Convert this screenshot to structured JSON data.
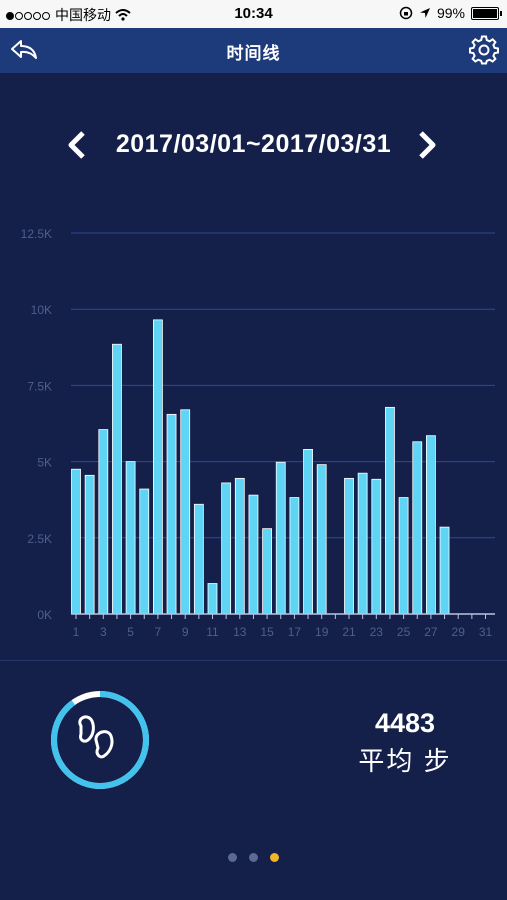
{
  "status_bar": {
    "carrier": "中国移动",
    "time": "10:34",
    "battery": "99%"
  },
  "nav": {
    "title": "时间线",
    "back_icon": "back-arrow-icon",
    "settings_icon": "gear-icon"
  },
  "date_range": {
    "label": "2017/03/01~2017/03/31"
  },
  "colors": {
    "background": "#14204a",
    "nav": "#1d3a7a",
    "bar": "#5fd4f5",
    "ring": "#41c3ee",
    "pager_active": "#f2b42a"
  },
  "chart_data": {
    "type": "bar",
    "y_ticks": [
      "0K",
      "2.5K",
      "5K",
      "7.5K",
      "10K",
      "12.5K"
    ],
    "ylim": [
      0,
      12500
    ],
    "x_ticks": [
      "1",
      "3",
      "5",
      "7",
      "9",
      "11",
      "13",
      "15",
      "17",
      "19",
      "21",
      "23",
      "25",
      "27",
      "29",
      "31"
    ],
    "categories": [
      "1",
      "2",
      "3",
      "4",
      "5",
      "6",
      "7",
      "8",
      "9",
      "10",
      "11",
      "12",
      "13",
      "14",
      "15",
      "16",
      "17",
      "18",
      "19",
      "20",
      "21",
      "22",
      "23",
      "24",
      "25",
      "26",
      "27",
      "28",
      "29",
      "30",
      "31"
    ],
    "values": [
      4750,
      4550,
      6050,
      8850,
      5000,
      4100,
      9650,
      6550,
      6700,
      3600,
      1000,
      4300,
      4450,
      3900,
      2800,
      4980,
      3820,
      5400,
      4900,
      0,
      4450,
      4620,
      4420,
      6780,
      3820,
      5650,
      5850,
      2850,
      0,
      0,
      0
    ],
    "grid": true
  },
  "summary": {
    "average_value": "4483",
    "average_label": "平均 步",
    "progress_fraction": 0.9,
    "icon": "footprints-icon"
  },
  "pager": {
    "count": 3,
    "active_index": 2
  }
}
